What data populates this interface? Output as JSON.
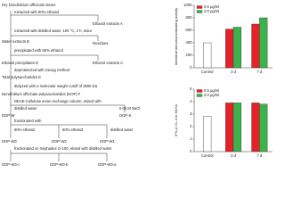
{
  "diagram": {
    "steps": [
      "Dry Dendrobium officinale stems",
      "extracted with 80% ethanol",
      "Ethanol extracts A",
      "extracted with distilled water, 100 °C, 2 h, twice",
      "Residues",
      "Water extracts B",
      "precipitated with 80% ethanol",
      "Ethanol extracts C",
      "Ethanol precipitates D",
      "deproteinized with Sevag method",
      "Total polysaccharides E",
      "dialyzed with a molecular weight cutoff of 3500 Da",
      "Dendrobium officinale polysaccharides (DOP) F",
      "DEAE-Cellulose anion exchange column, eluted with",
      "distilled water",
      "0.05 M NaCl",
      "DOP-W",
      "DOP-S",
      "fractionated with",
      "80% ethanol",
      "60% ethanol",
      "distilled water",
      "DOP-W3",
      "DOP-W2",
      "DOP-W1",
      "fractionated on Sephadex G-100, eluted with distilled water",
      "DOP-W3-c",
      "DOP-W3-b",
      "DOP-W3-a"
    ]
  },
  "chart_data": [
    {
      "type": "bar",
      "y_label": "Intestinal immunomodulating activity",
      "categories": [
        "Control",
        "3 d",
        "7 d"
      ],
      "series": [
        {
          "color": "#ffffff",
          "values": [
            400,
            null,
            null
          ]
        },
        {
          "name": "0.5 μg/ml",
          "color": "#e8202a",
          "values": [
            null,
            620,
            700
          ]
        },
        {
          "name": "2.0 μg/ml",
          "color": "#3cb34a",
          "values": [
            null,
            650,
            800
          ]
        }
      ],
      "ylim": [
        0,
        1000
      ],
      "yticks": [
        0,
        200,
        400,
        600,
        800,
        1000
      ]
    },
    {
      "type": "bar",
      "y_label": "IFN-γ / IL-4 in MLNs",
      "categories": [
        "Control",
        "3 d",
        "7 d"
      ],
      "series": [
        {
          "color": "#ffffff",
          "values": [
            2.8,
            null,
            null
          ]
        },
        {
          "name": "0.5 μg/ml",
          "color": "#e8202a",
          "values": [
            null,
            3.9,
            3.9
          ]
        },
        {
          "name": "2.0 μg/ml",
          "color": "#3cb34a",
          "values": [
            null,
            3.9,
            3.8
          ]
        }
      ],
      "ylim": [
        0,
        5
      ],
      "yticks": [
        0,
        1,
        2,
        3,
        4,
        5
      ]
    }
  ]
}
